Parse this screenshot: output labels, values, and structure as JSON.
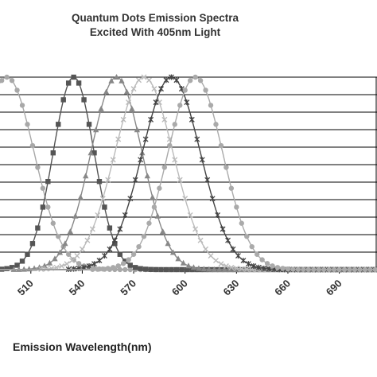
{
  "chart_data": {
    "type": "line",
    "title": "Quantum Dots Emission Spectra",
    "subtitle": "Excited With 405nm Light",
    "xlabel": "Emission Wavelength(nm)",
    "ylabel": "",
    "xlim": [
      492,
      712
    ],
    "ylim": [
      0,
      1
    ],
    "x_ticks": [
      510,
      540,
      570,
      600,
      630,
      660,
      690
    ],
    "y_gridlines": 11,
    "grid": true,
    "legend": "none",
    "series": [
      {
        "peak_nm": 496,
        "width_nm": 16,
        "marker": "circle",
        "color": "#a8a8a8"
      },
      {
        "peak_nm": 535,
        "width_nm": 12,
        "marker": "square",
        "color": "#555555"
      },
      {
        "peak_nm": 560,
        "width_nm": 15,
        "marker": "triangle",
        "color": "#888888"
      },
      {
        "peak_nm": 576,
        "width_nm": 17,
        "marker": "x",
        "color": "#bbbbbb"
      },
      {
        "peak_nm": 592,
        "width_nm": 17,
        "marker": "star",
        "color": "#444444"
      },
      {
        "peak_nm": 606,
        "width_nm": 16,
        "marker": "circle",
        "color": "#aaaaaa"
      }
    ]
  }
}
